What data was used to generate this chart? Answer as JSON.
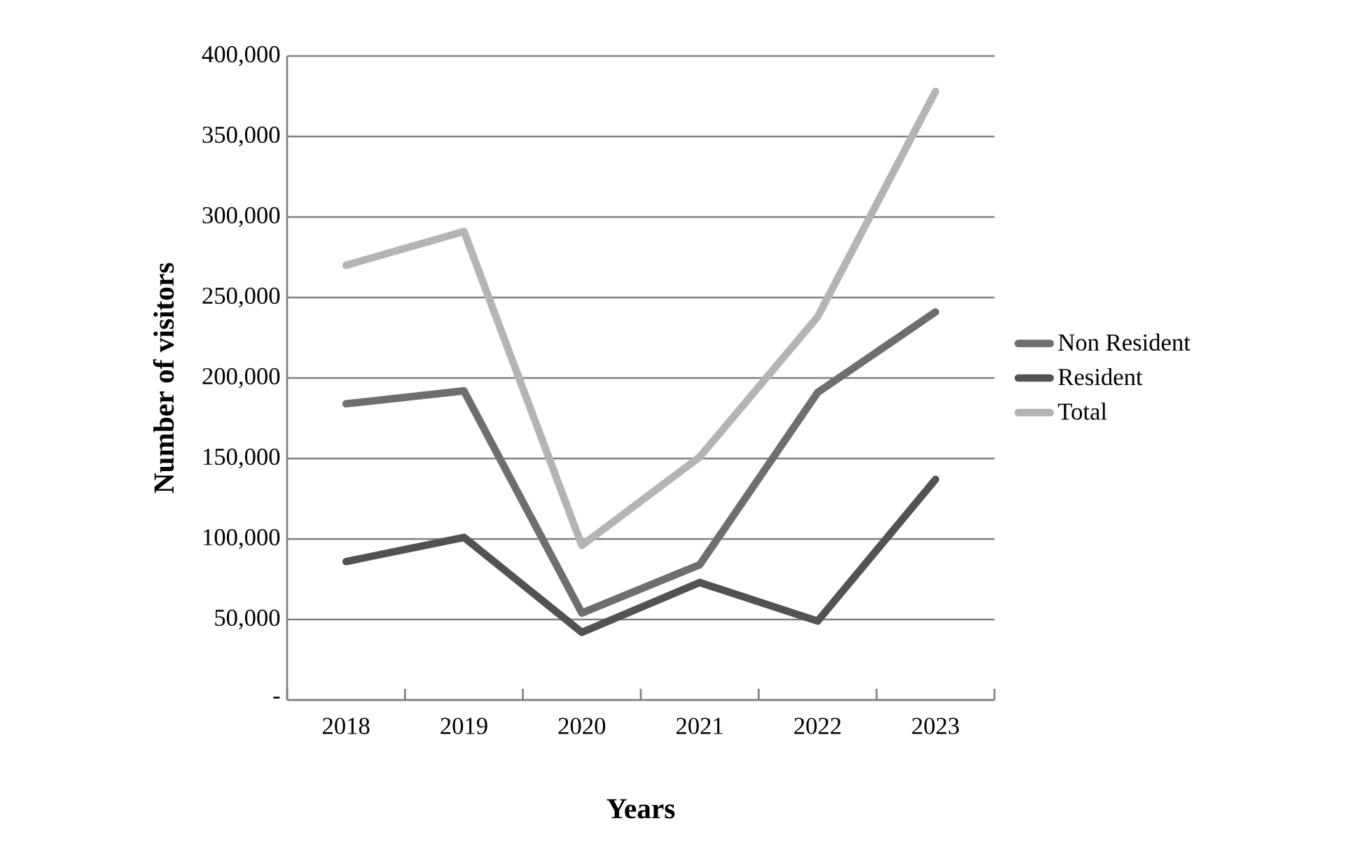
{
  "chart_data": {
    "type": "line",
    "xlabel": "Years",
    "ylabel": "Number of visitors",
    "categories": [
      "2018",
      "2019",
      "2020",
      "2021",
      "2022",
      "2023"
    ],
    "series": [
      {
        "name": "Non Resident",
        "color": "#6e6e6e",
        "values": [
          184000,
          192000,
          54000,
          84000,
          191000,
          241000
        ]
      },
      {
        "name": "Resident",
        "color": "#525252",
        "values": [
          86000,
          101000,
          42000,
          73000,
          49000,
          137000
        ]
      },
      {
        "name": "Total",
        "color": "#b4b4b4",
        "values": [
          270000,
          291000,
          96000,
          151000,
          238000,
          378000
        ]
      }
    ],
    "ylim": [
      0,
      400000
    ],
    "yticks": [
      {
        "value": 0,
        "label": "-"
      },
      {
        "value": 50000,
        "label": "50,000"
      },
      {
        "value": 100000,
        "label": "100,000"
      },
      {
        "value": 150000,
        "label": "150,000"
      },
      {
        "value": 200000,
        "label": "200,000"
      },
      {
        "value": 250000,
        "label": "250,000"
      },
      {
        "value": 300000,
        "label": "300,000"
      },
      {
        "value": 350000,
        "label": "350,000"
      },
      {
        "value": 400000,
        "label": "400,000"
      }
    ],
    "grid": "y",
    "legend": "right",
    "marker": "none",
    "line_style": "solid"
  }
}
